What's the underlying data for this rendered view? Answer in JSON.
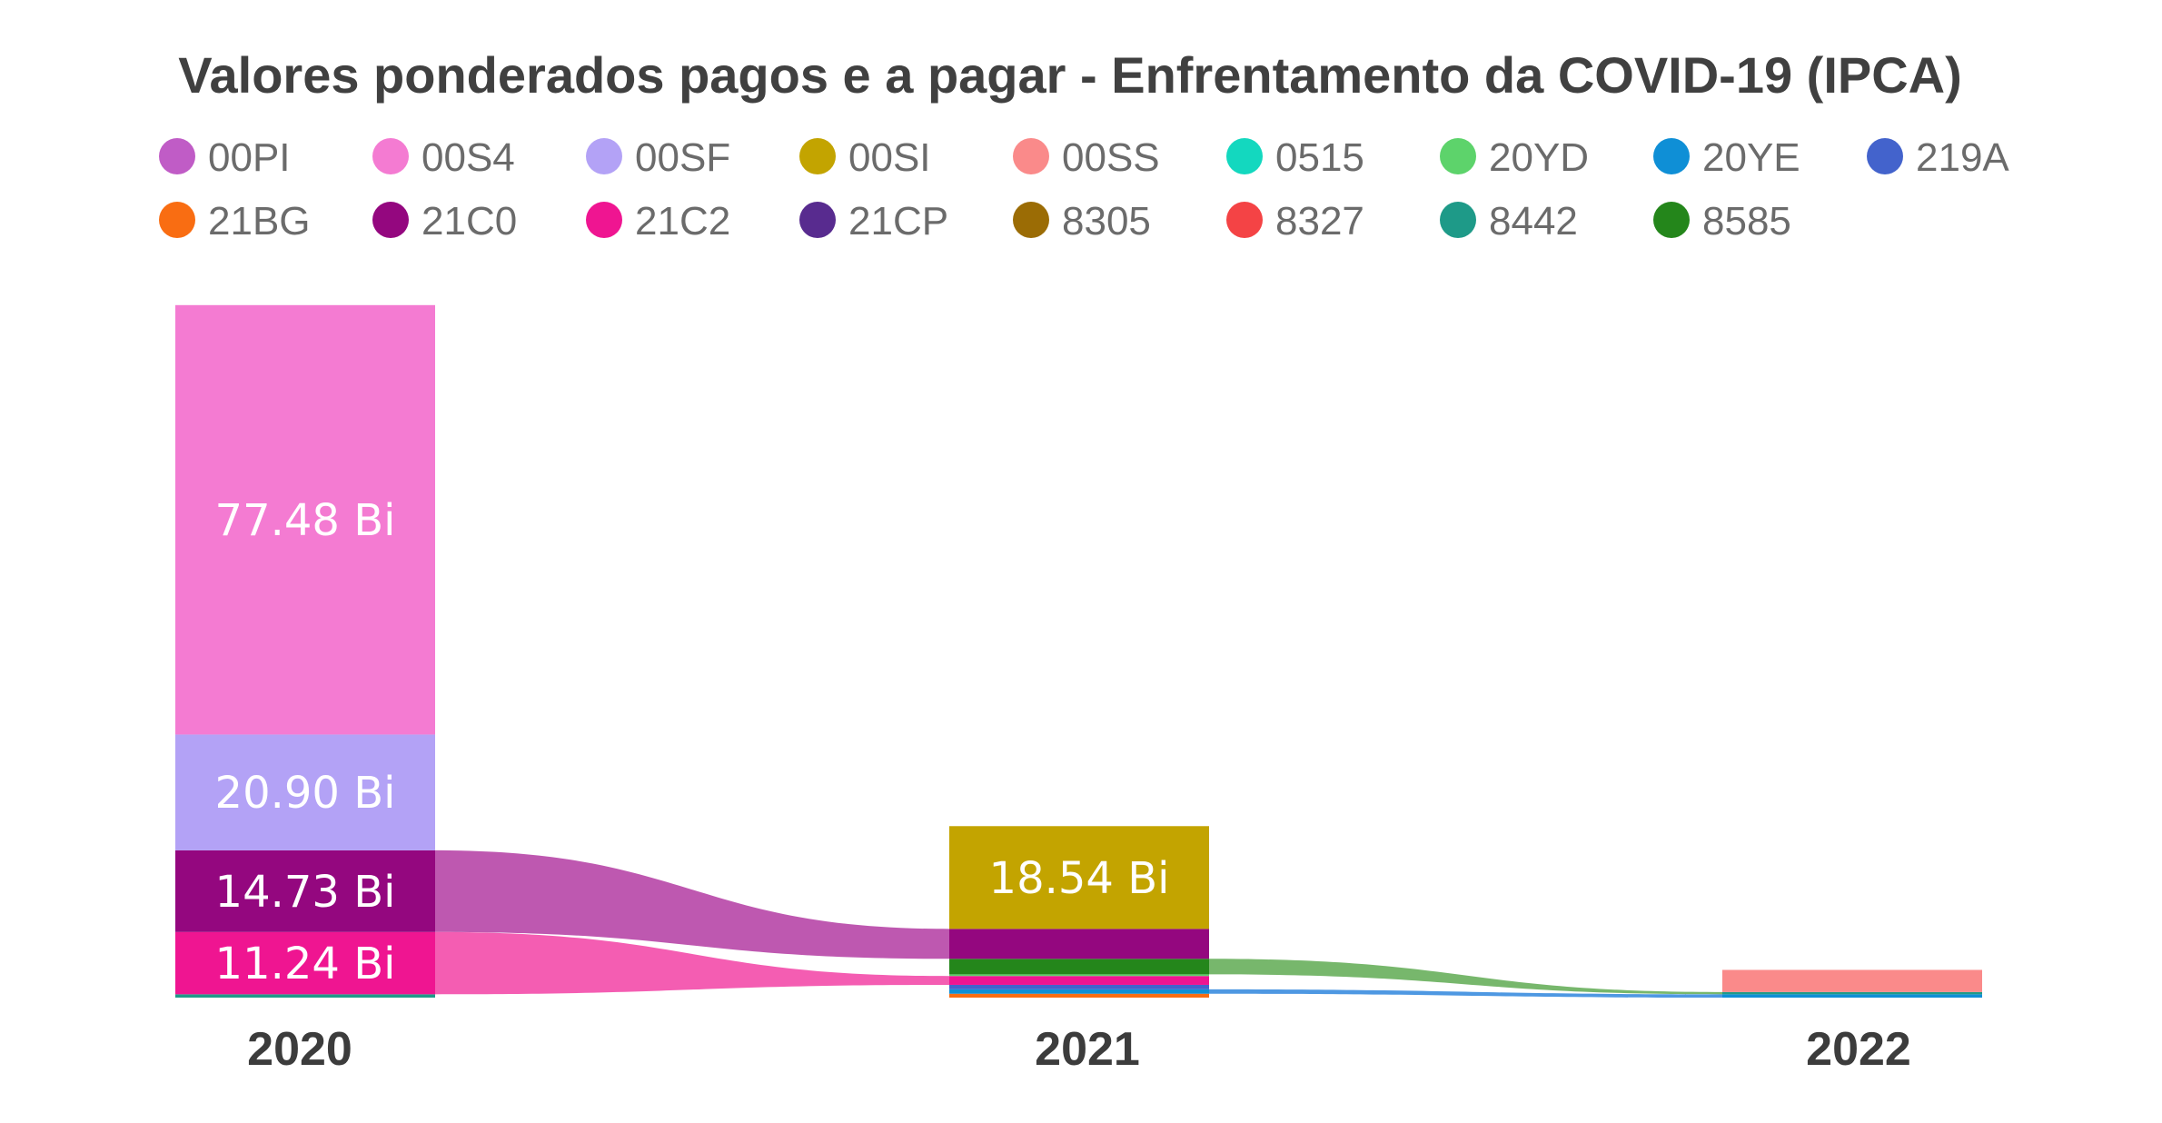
{
  "chart_data": {
    "type": "ribbon-stacked-bar",
    "title": "Valores ponderados pagos e a pagar - Enfrentamento da COVID-19 (IPCA)",
    "unit": "Bi",
    "categories": [
      "2020",
      "2021",
      "2022"
    ],
    "legend": [
      {
        "name": "00PI",
        "color": "#c05cc6"
      },
      {
        "name": "00S4",
        "color": "#f47bd2"
      },
      {
        "name": "00SF",
        "color": "#b3a2f6"
      },
      {
        "name": "00SI",
        "color": "#c3a400"
      },
      {
        "name": "00SS",
        "color": "#fa8a8a"
      },
      {
        "name": "0515",
        "color": "#13d8bf"
      },
      {
        "name": "20YD",
        "color": "#5dd36b"
      },
      {
        "name": "20YE",
        "color": "#0f8fd6"
      },
      {
        "name": "219A",
        "color": "#4363cc"
      },
      {
        "name": "21BG",
        "color": "#f96d12"
      },
      {
        "name": "21C0",
        "color": "#94077f"
      },
      {
        "name": "21C2",
        "color": "#ef1591"
      },
      {
        "name": "21CP",
        "color": "#582b8f"
      },
      {
        "name": "8305",
        "color": "#9b6c05"
      },
      {
        "name": "8327",
        "color": "#f44345"
      },
      {
        "name": "8442",
        "color": "#1e9a88"
      },
      {
        "name": "8585",
        "color": "#24861b"
      }
    ],
    "bars": [
      {
        "category": "2020",
        "segments": [
          {
            "series": "0515",
            "value": 0.6,
            "color": "#1e9a88"
          },
          {
            "series": "21C2",
            "value": 11.24,
            "color": "#ef1591",
            "label": "11.24 Bi"
          },
          {
            "series": "21C0",
            "value": 14.73,
            "color": "#94077f",
            "label": "14.73 Bi"
          },
          {
            "series": "00SF",
            "value": 20.9,
            "color": "#b3a2f6",
            "label": "20.90 Bi"
          },
          {
            "series": "00S4",
            "value": 77.48,
            "color": "#f47bd2",
            "label": "77.48 Bi"
          }
        ]
      },
      {
        "category": "2021",
        "segments": [
          {
            "series": "21BG",
            "value": 0.7,
            "color": "#f96d12"
          },
          {
            "series": "20YE",
            "value": 0.8,
            "color": "#0f8fd6"
          },
          {
            "series": "219A",
            "value": 0.8,
            "color": "#4363cc"
          },
          {
            "series": "21C2",
            "value": 1.6,
            "color": "#ef1591"
          },
          {
            "series": "20YD",
            "value": 0.3,
            "color": "#5dd36b"
          },
          {
            "series": "8585",
            "value": 2.8,
            "color": "#24861b"
          },
          {
            "series": "21C0",
            "value": 5.4,
            "color": "#94077f"
          },
          {
            "series": "00SI",
            "value": 18.54,
            "color": "#c3a400",
            "label": "18.54 Bi"
          }
        ]
      },
      {
        "category": "2022",
        "segments": [
          {
            "series": "20YE",
            "value": 0.6,
            "color": "#0f8fd6"
          },
          {
            "series": "8442",
            "value": 0.4,
            "color": "#1e9a88"
          },
          {
            "series": "00SS",
            "value": 4.0,
            "color": "#fa8a8a"
          }
        ]
      }
    ],
    "ribbons": [
      {
        "from_bar": 0,
        "from_series": "21C0",
        "to_bar": 1,
        "to_series": "21C0",
        "color": "#b84aa9"
      },
      {
        "from_bar": 0,
        "from_series": "21C2",
        "to_bar": 1,
        "to_series": "21C2",
        "color": "#f34fab"
      },
      {
        "from_bar": 1,
        "from_series": "8585",
        "to_bar": 2,
        "to_series": "8442",
        "color": "#6bb15f"
      },
      {
        "from_bar": 1,
        "from_series": "20YE",
        "to_bar": 2,
        "to_series": "20YE",
        "color": "#3f8fe0"
      }
    ]
  }
}
